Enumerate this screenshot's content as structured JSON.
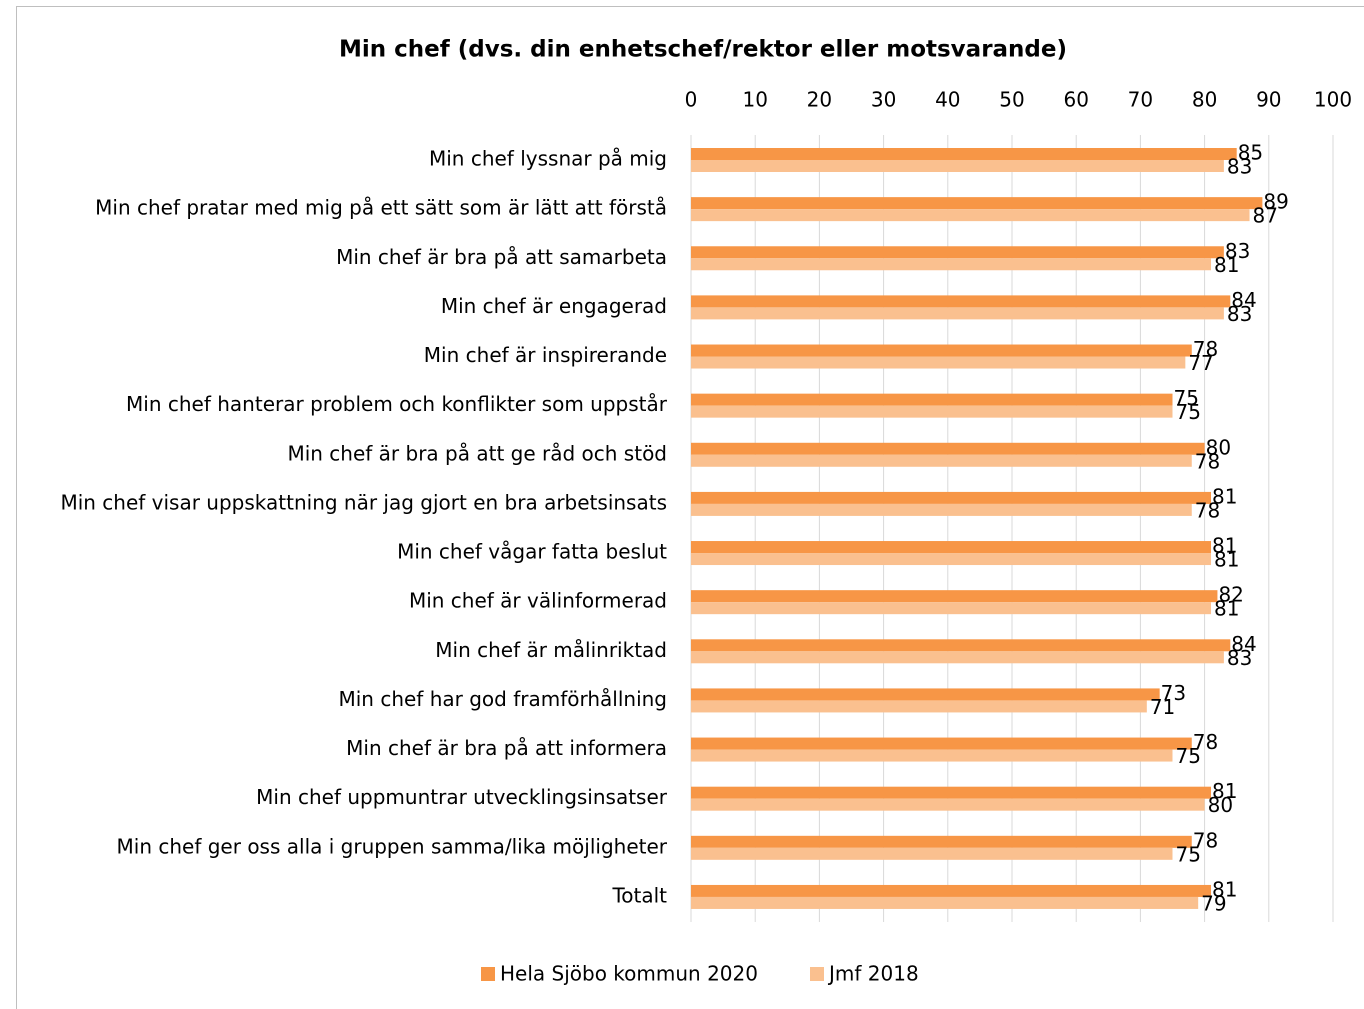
{
  "chart_data": {
    "type": "bar",
    "orientation": "horizontal",
    "title": "Min chef (dvs. din enhetschef/rektor eller motsvarande)",
    "categories": [
      "Min chef lyssnar på mig",
      "Min chef pratar med mig på ett sätt som är lätt att förstå",
      "Min chef är bra på att samarbeta",
      "Min chef är engagerad",
      "Min chef är inspirerande",
      "Min chef hanterar problem och konflikter som uppstår",
      "Min chef är bra på att ge råd och stöd",
      "Min chef visar uppskattning när jag gjort en bra arbetsinsats",
      "Min chef vågar fatta beslut",
      "Min chef är välinformerad",
      "Min chef är målinriktad",
      "Min chef har god framförhållning",
      "Min chef är bra på att informera",
      "Min chef uppmuntrar utvecklingsinsatser",
      "Min chef ger oss alla i gruppen samma/lika möjligheter",
      "Totalt"
    ],
    "series": [
      {
        "name": "Hela Sjöbo kommun 2020",
        "color": "#f79646",
        "values": [
          85,
          89,
          83,
          84,
          78,
          75,
          80,
          81,
          81,
          82,
          84,
          73,
          78,
          81,
          78,
          81
        ]
      },
      {
        "name": "Jmf 2018",
        "color": "#fac08f",
        "values": [
          83,
          87,
          81,
          83,
          77,
          75,
          78,
          78,
          81,
          81,
          83,
          71,
          75,
          80,
          75,
          79
        ]
      }
    ],
    "xlim": [
      0,
      100
    ],
    "xticks": [
      0,
      10,
      20,
      30,
      40,
      50,
      60,
      70,
      80,
      90,
      100
    ],
    "grid": true,
    "data_labels": true,
    "legend": "bottom"
  }
}
